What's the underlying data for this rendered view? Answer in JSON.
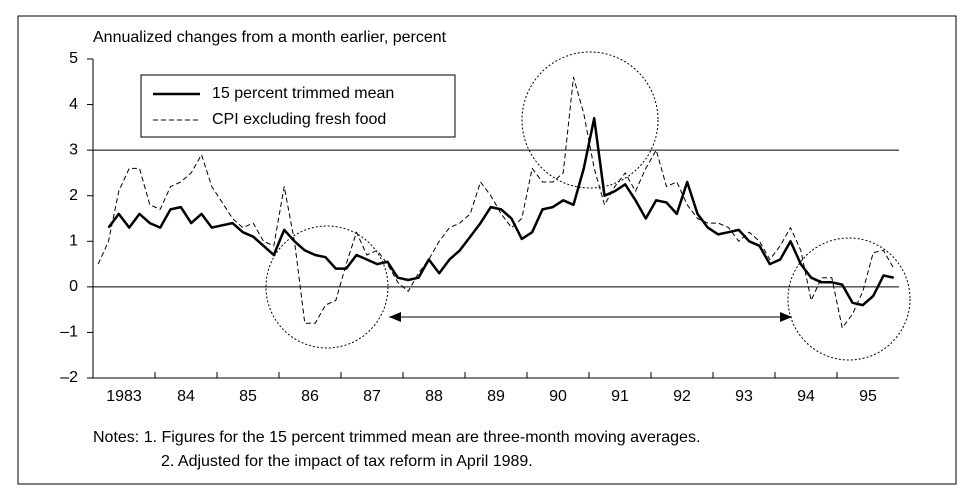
{
  "chart_data": {
    "type": "line",
    "title": "Annualized changes from a month earlier, percent",
    "categories": [
      "1983",
      null,
      null,
      null,
      null,
      null,
      "84",
      null,
      null,
      null,
      null,
      null,
      "85",
      null,
      null,
      null,
      null,
      null,
      "86",
      null,
      null,
      null,
      null,
      null,
      "87",
      null,
      null,
      null,
      null,
      null,
      "88",
      null,
      null,
      null,
      null,
      null,
      "89",
      null,
      null,
      null,
      null,
      null,
      "90",
      null,
      null,
      null,
      null,
      null,
      "91",
      null,
      null,
      null,
      null,
      null,
      "92",
      null,
      null,
      null,
      null,
      null,
      "93",
      null,
      null,
      null,
      null,
      null,
      "94",
      null,
      null,
      null,
      null,
      null,
      "95",
      null,
      null,
      null,
      null,
      null
    ],
    "series": [
      {
        "name": "15 percent trimmed mean",
        "color": "#000000",
        "style": "solid",
        "values": [
          null,
          1.3,
          1.6,
          1.3,
          1.6,
          1.4,
          1.3,
          1.7,
          1.75,
          1.4,
          1.6,
          1.3,
          1.35,
          1.4,
          1.2,
          1.1,
          0.9,
          0.7,
          1.25,
          1.0,
          0.8,
          0.7,
          0.65,
          0.4,
          0.4,
          0.7,
          0.6,
          0.5,
          0.55,
          0.2,
          0.15,
          0.2,
          0.6,
          0.3,
          0.6,
          0.8,
          1.1,
          1.4,
          1.75,
          1.7,
          1.5,
          1.05,
          1.2,
          1.7,
          1.75,
          1.9,
          1.8,
          2.6,
          3.7,
          2.0,
          2.1,
          2.25,
          1.9,
          1.5,
          1.9,
          1.85,
          1.6,
          2.3,
          1.6,
          1.3,
          1.15,
          1.2,
          1.25,
          1.0,
          0.9,
          0.5,
          0.6,
          1.0,
          0.5,
          0.2,
          0.1,
          0.1,
          0.05,
          -0.35,
          -0.4,
          -0.2,
          0.25,
          0.2
        ]
      },
      {
        "name": "CPI excluding fresh food",
        "color": "#000000",
        "style": "dashed",
        "values": [
          0.5,
          1.0,
          2.1,
          2.6,
          2.6,
          1.8,
          1.7,
          2.2,
          2.3,
          2.5,
          2.9,
          2.2,
          1.85,
          1.5,
          1.3,
          1.4,
          1.0,
          0.9,
          2.2,
          1.0,
          -0.8,
          -0.8,
          -0.4,
          -0.3,
          0.5,
          1.2,
          0.7,
          0.8,
          0.5,
          0.1,
          -0.1,
          0.3,
          0.6,
          1.0,
          1.3,
          1.4,
          1.6,
          2.3,
          2.0,
          1.6,
          1.3,
          1.5,
          2.6,
          2.3,
          2.3,
          2.5,
          4.6,
          3.8,
          2.6,
          1.8,
          2.2,
          2.5,
          2.1,
          2.6,
          3.0,
          2.2,
          2.3,
          1.8,
          1.5,
          1.4,
          1.4,
          1.3,
          1.0,
          1.2,
          1.0,
          0.6,
          0.9,
          1.3,
          0.8,
          -0.3,
          0.2,
          0.2,
          -0.9,
          -0.6,
          -0.1,
          0.75,
          0.8,
          0.4
        ]
      }
    ],
    "ylim": [
      -2,
      5
    ],
    "yticks": [
      {
        "value": -2,
        "label": "–2"
      },
      {
        "value": -1,
        "label": "–1"
      },
      0,
      1,
      2,
      3,
      4,
      5
    ],
    "reference_lines": [
      0,
      3
    ],
    "legend": "top-left",
    "notes": [
      "Notes: 1. Figures for the 15 percent trimmed mean are three-month moving averages.",
      "2. Adjusted for the impact of tax reform in April 1989."
    ]
  }
}
